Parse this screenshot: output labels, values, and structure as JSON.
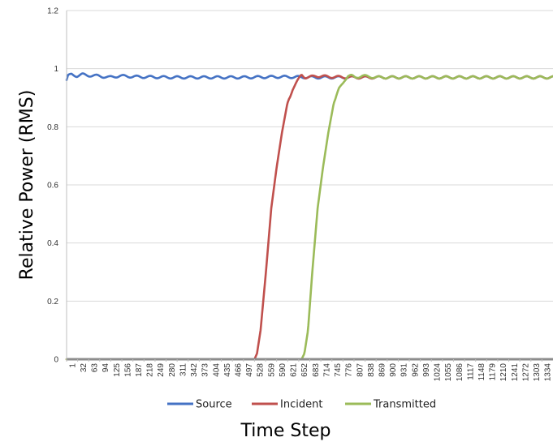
{
  "chart_data": {
    "type": "line",
    "xlabel": "Time Step",
    "ylabel": "Relative Power (RMS)",
    "ylim": [
      0,
      1.2
    ],
    "yticks": [
      "0",
      "0.2",
      "0.4",
      "0.6",
      "0.8",
      "1",
      "1.2"
    ],
    "xlim": [
      1,
      1365
    ],
    "xticks": [
      "1",
      "32",
      "63",
      "94",
      "125",
      "156",
      "187",
      "218",
      "249",
      "280",
      "311",
      "342",
      "373",
      "404",
      "435",
      "466",
      "497",
      "528",
      "559",
      "590",
      "621",
      "652",
      "683",
      "714",
      "745",
      "776",
      "807",
      "838",
      "869",
      "900",
      "931",
      "962",
      "993",
      "1024",
      "1055",
      "1086",
      "1117",
      "1148",
      "1179",
      "1210",
      "1241",
      "1272",
      "1303",
      "1334"
    ],
    "grid": "horizontal",
    "legend_position": "bottom",
    "series": [
      {
        "name": "Source",
        "color": "#4472C4",
        "x": [
          1,
          5,
          15,
          30,
          45,
          60,
          90,
          120,
          150,
          200,
          300,
          400,
          500,
          600,
          700,
          800,
          900,
          1000,
          1100,
          1200,
          1300,
          1365
        ],
        "y": [
          0.96,
          0.975,
          0.98,
          0.975,
          0.98,
          0.977,
          0.975,
          0.97,
          0.975,
          0.972,
          0.97,
          0.97,
          0.97,
          0.972,
          0.97,
          0.97,
          0.97,
          0.97,
          0.97,
          0.97,
          0.97,
          0.97
        ],
        "ripple": true
      },
      {
        "name": "Incident",
        "color": "#C0504D",
        "x": [
          1,
          500,
          528,
          535,
          545,
          560,
          575,
          590,
          605,
          620,
          635,
          650,
          660,
          670,
          680,
          700,
          740,
          800,
          900,
          1000,
          1100,
          1200,
          1300,
          1365
        ],
        "y": [
          0,
          0,
          0,
          0.02,
          0.1,
          0.3,
          0.52,
          0.66,
          0.78,
          0.88,
          0.93,
          0.96,
          0.98,
          0.97,
          0.97,
          0.975,
          0.972,
          0.97,
          0.97,
          0.97,
          0.97,
          0.97,
          0.97,
          0.97
        ],
        "ripple": true
      },
      {
        "name": "Transmitted",
        "color": "#9BBB59",
        "x": [
          1,
          600,
          660,
          668,
          678,
          690,
          705,
          720,
          735,
          750,
          765,
          780,
          790,
          800,
          810,
          830,
          870,
          900,
          1000,
          1100,
          1200,
          1300,
          1365
        ],
        "y": [
          0,
          0,
          0,
          0.02,
          0.1,
          0.3,
          0.52,
          0.66,
          0.78,
          0.88,
          0.93,
          0.96,
          0.975,
          0.975,
          0.97,
          0.975,
          0.97,
          0.97,
          0.97,
          0.97,
          0.97,
          0.97,
          0.97
        ],
        "ripple": true
      }
    ]
  }
}
